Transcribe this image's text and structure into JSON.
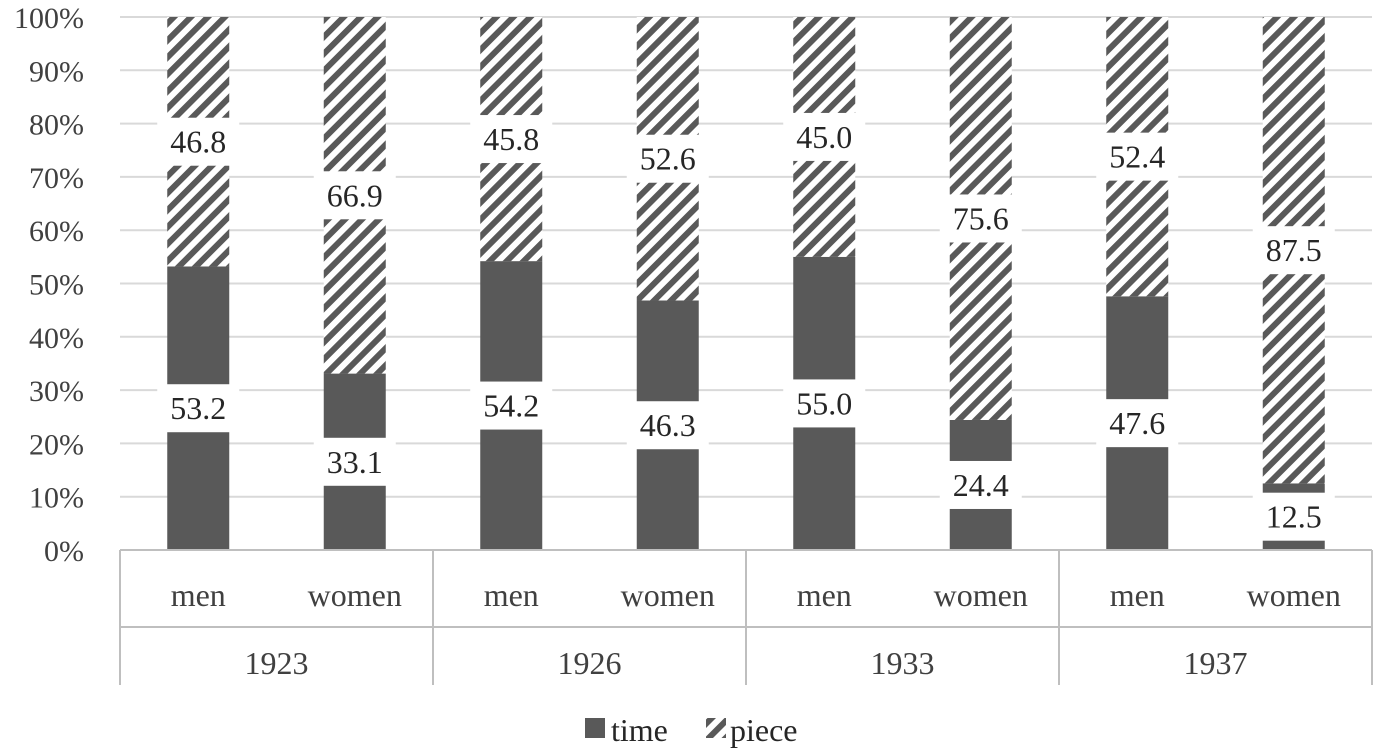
{
  "chart_data": {
    "type": "bar",
    "stacked": true,
    "percent_stacked": true,
    "groups": [
      "1923",
      "1926",
      "1933",
      "1937"
    ],
    "categories": [
      "men",
      "women",
      "men",
      "women",
      "men",
      "women",
      "men",
      "women"
    ],
    "series": [
      {
        "name": "time",
        "values": [
          53.2,
          33.1,
          54.2,
          46.3,
          55.0,
          24.4,
          47.6,
          12.5
        ],
        "color": "#595959",
        "pattern": "solid"
      },
      {
        "name": "piece",
        "values": [
          46.8,
          66.9,
          45.8,
          52.6,
          45.0,
          75.6,
          52.4,
          87.5
        ],
        "color": "#595959",
        "pattern": "diagonal-stripes"
      }
    ],
    "value_labels": {
      "time": [
        "53.2",
        "33.1",
        "54.2",
        "46.3",
        "55.0",
        "24.4",
        "47.6",
        "12.5"
      ],
      "piece": [
        "46.8",
        "66.9",
        "45.8",
        "52.6",
        "45.0",
        "75.6",
        "52.4",
        "87.5"
      ]
    },
    "y_ticks": [
      "0%",
      "10%",
      "20%",
      "30%",
      "40%",
      "50%",
      "60%",
      "70%",
      "80%",
      "90%",
      "100%"
    ],
    "ylim": [
      0,
      100
    ],
    "grid": true,
    "legend": {
      "position": "bottom",
      "entries": [
        "time",
        "piece"
      ]
    }
  }
}
